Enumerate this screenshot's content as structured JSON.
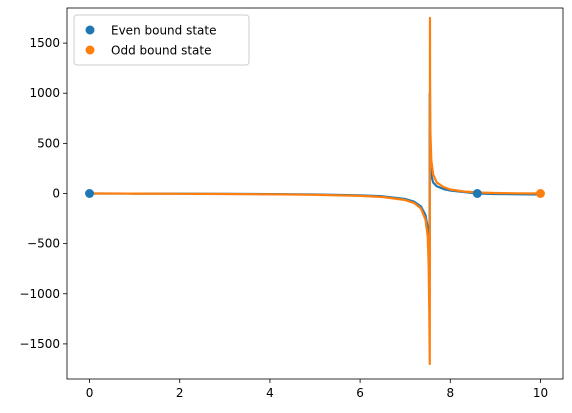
{
  "chart_data": {
    "type": "line",
    "title": "",
    "xlabel": "",
    "ylabel": "",
    "xlim": [
      -0.5,
      10.5
    ],
    "ylim": [
      -1850,
      1850
    ],
    "x_ticks": [
      0,
      2,
      4,
      6,
      8,
      10
    ],
    "y_ticks": [
      -1500,
      -1000,
      -500,
      0,
      500,
      1000,
      1500
    ],
    "grid": false,
    "legend_position": "top-left",
    "legend": [
      {
        "label": "Even bound state",
        "color": "#1f77b4",
        "marker": "circle"
      },
      {
        "label": "Odd bound state",
        "color": "#ff7f0e",
        "marker": "circle"
      }
    ],
    "series": [
      {
        "color": "#1f77b4",
        "kind": "line",
        "x": [
          0,
          1,
          2,
          3,
          4,
          5,
          6,
          6.5,
          7,
          7.2,
          7.35,
          7.45,
          7.5,
          7.52,
          7.535,
          7.54,
          7.545,
          7.55,
          7.56,
          7.58,
          7.62,
          7.7,
          7.85,
          8.0,
          8.3,
          8.6,
          9.0,
          9.5,
          10
        ],
        "y": [
          0,
          -1,
          -2,
          -4,
          -6,
          -10,
          -18,
          -28,
          -55,
          -82,
          -130,
          -215,
          -340,
          -530,
          -900,
          -1000,
          1000,
          560,
          300,
          180,
          110,
          72,
          45,
          30,
          15,
          0,
          -5,
          -8,
          -10
        ]
      },
      {
        "color": "#ff7f0e",
        "kind": "line",
        "x": [
          0,
          1,
          2,
          3,
          4,
          5,
          6,
          6.5,
          7,
          7.2,
          7.35,
          7.45,
          7.5,
          7.52,
          7.535,
          7.545,
          7.55,
          7.552,
          7.56,
          7.58,
          7.62,
          7.7,
          7.85,
          8.0,
          8.3,
          8.6,
          9.0,
          9.5,
          10
        ],
        "y": [
          0,
          -1,
          -3,
          -5,
          -8,
          -13,
          -24,
          -35,
          -65,
          -95,
          -150,
          -260,
          -430,
          -700,
          -1200,
          -1700,
          1750,
          1100,
          600,
          330,
          190,
          110,
          65,
          40,
          20,
          10,
          5,
          2,
          0
        ]
      },
      {
        "color": "#1f77b4",
        "kind": "scatter",
        "x": [
          0,
          8.6
        ],
        "y": [
          0,
          0
        ]
      },
      {
        "color": "#ff7f0e",
        "kind": "scatter",
        "x": [
          10
        ],
        "y": [
          0
        ]
      }
    ]
  }
}
